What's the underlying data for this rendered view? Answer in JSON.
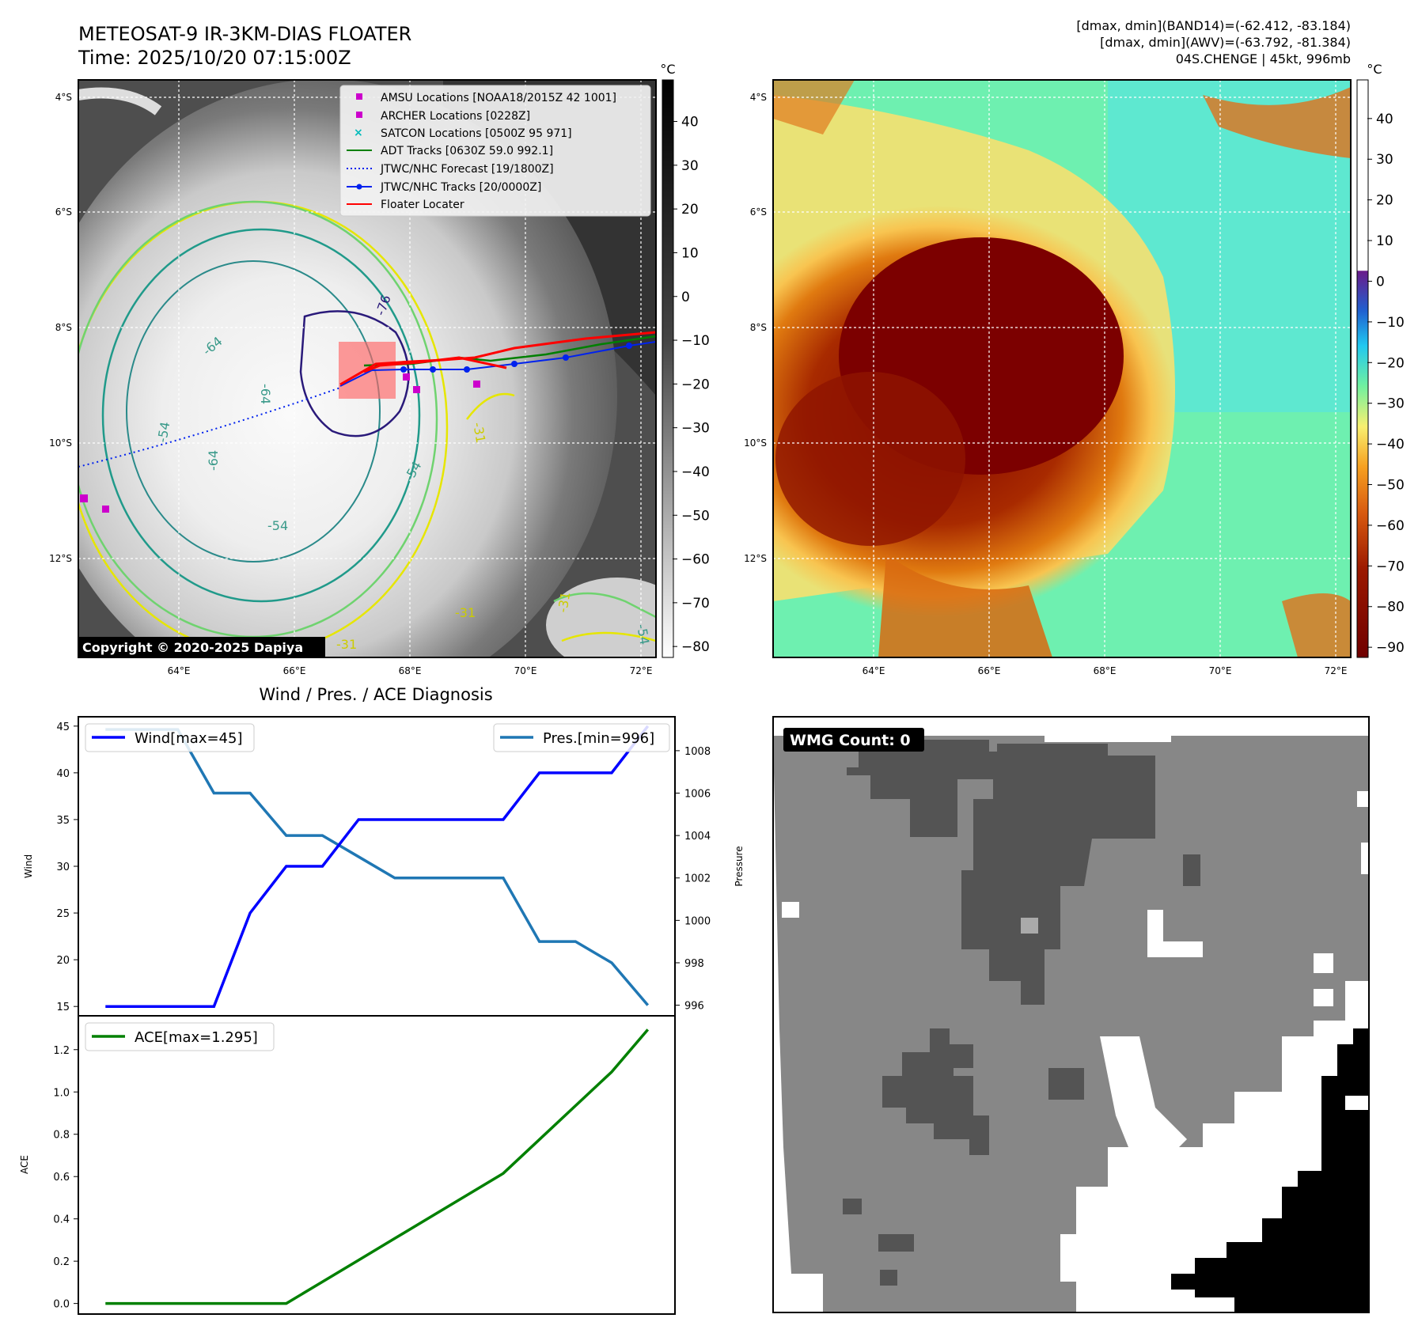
{
  "header": {
    "title_line1": "METEOSAT-9 IR-3KM-DIAS FLOATER",
    "title_line2": "Time: 2025/10/20 07:15:00Z",
    "stats_line1": "[dmax, dmin](BAND14)=(-62.412, -83.184)",
    "stats_line2": "[dmax, dmin](AWV)=(-63.792, -81.384)",
    "stats_line3": "04S.CHENGE | 45kt, 996mb",
    "copyright": "Copyright © 2020-2025 Dapiya"
  },
  "colors": {
    "wind": "#0000ff",
    "pressure": "#1f77b4",
    "ace": "#008000",
    "amsu": "#cc00cc",
    "satcon": "#00bbbb",
    "adt": "#008000",
    "jtwc": "#0022ee",
    "floater": "#ff0000"
  },
  "maps": {
    "lon_ticks": [
      "64°E",
      "66°E",
      "68°E",
      "70°E",
      "72°E"
    ],
    "lat_ticks": [
      "4°S",
      "6°S",
      "8°S",
      "10°S",
      "12°S"
    ],
    "unit_label": "°C",
    "ir_colorbar_ticks": [
      "40",
      "30",
      "20",
      "10",
      "0",
      "−10",
      "−20",
      "−30",
      "−40",
      "−50",
      "−60",
      "−70",
      "−80"
    ],
    "awv_colorbar_ticks": [
      "40",
      "30",
      "20",
      "10",
      "0",
      "−10",
      "−20",
      "−30",
      "−40",
      "−50",
      "−60",
      "−70",
      "−80",
      "−90"
    ],
    "contour_labels": [
      "-76",
      "-64",
      "-64",
      "-64",
      "-54",
      "-54",
      "-54",
      "-31",
      "-31",
      "-31",
      "-31",
      "-54"
    ]
  },
  "legend": {
    "items": [
      "AMSU Locations [NOAA18/2015Z 42 1001]",
      "ARCHER Locations [0228Z]",
      "SATCON Locations [0500Z 95 971]",
      "ADT Tracks [0630Z 59.0 992.1]",
      "JTWC/NHC Forecast [19/1800Z]",
      "JTWC/NHC Tracks [20/0000Z]",
      "Floater Locater"
    ]
  },
  "wmg": {
    "label": "WMG Count: 0"
  },
  "chart_data": [
    {
      "type": "line",
      "title": "Wind / Pres. / ACE Diagnosis",
      "x": [
        0,
        1,
        2,
        3,
        4,
        5,
        6,
        7,
        8,
        9,
        10,
        11,
        12,
        13,
        14,
        15
      ],
      "series": [
        {
          "name": "Wind[max=45]",
          "axis": "left",
          "values": [
            15,
            15,
            15,
            15,
            25,
            30,
            30,
            35,
            35,
            35,
            35,
            35,
            40,
            40,
            40,
            45
          ]
        },
        {
          "name": "Pres.[min=996]",
          "axis": "right",
          "values": [
            1009,
            1009,
            1009,
            1006,
            1006,
            1004,
            1004,
            1003,
            1002,
            1002,
            1002,
            1002,
            999,
            999,
            998,
            996
          ]
        }
      ],
      "ylabel": "Wind",
      "ylabel_right": "Pressure",
      "ylim": [
        14,
        46
      ],
      "ylim_right": [
        995.5,
        1009.6
      ],
      "yticks": [
        "15",
        "20",
        "25",
        "30",
        "35",
        "40",
        "45"
      ],
      "yticks_right": [
        "996",
        "998",
        "1000",
        "1002",
        "1004",
        "1006",
        "1008"
      ]
    },
    {
      "type": "line",
      "x": [
        0,
        1,
        2,
        3,
        4,
        5,
        6,
        7,
        8,
        9,
        10,
        11,
        12,
        13,
        14,
        15
      ],
      "series": [
        {
          "name": "ACE[max=1.295]",
          "values": [
            0,
            0,
            0,
            0,
            0,
            0,
            0.1025,
            0.205,
            0.3075,
            0.41,
            0.5125,
            0.615,
            0.775,
            0.935,
            1.095,
            1.295
          ]
        }
      ],
      "ylabel": "ACE",
      "ylim": [
        -0.05,
        1.36
      ],
      "yticks": [
        "0.0",
        "0.2",
        "0.4",
        "0.6",
        "0.8",
        "1.0",
        "1.2"
      ]
    }
  ]
}
